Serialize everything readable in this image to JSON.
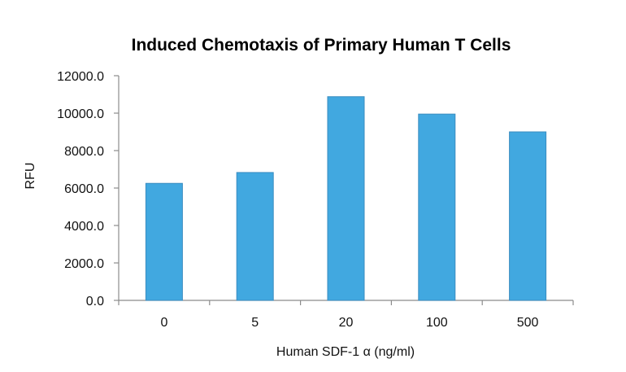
{
  "chart_data": {
    "type": "bar",
    "title": "Induced Chemotaxis of Primary Human T Cells",
    "xlabel": "Human SDF-1 α (ng/ml)",
    "ylabel": "RFU",
    "categories": [
      "0",
      "5",
      "20",
      "100",
      "500"
    ],
    "values": [
      6250,
      6830,
      10880,
      9950,
      9000
    ],
    "ylim": [
      0,
      12000
    ],
    "yticks": [
      "0.0",
      "2000.0",
      "4000.0",
      "6000.0",
      "8000.0",
      "10000.0",
      "12000.0"
    ],
    "ytick_values": [
      0,
      2000,
      4000,
      6000,
      8000,
      10000,
      12000
    ],
    "grid": false,
    "legend": "none",
    "bar_color": "#41a8e0",
    "bar_edge_color": "#3a8cc0",
    "axis_color": "#8c8c8c"
  }
}
